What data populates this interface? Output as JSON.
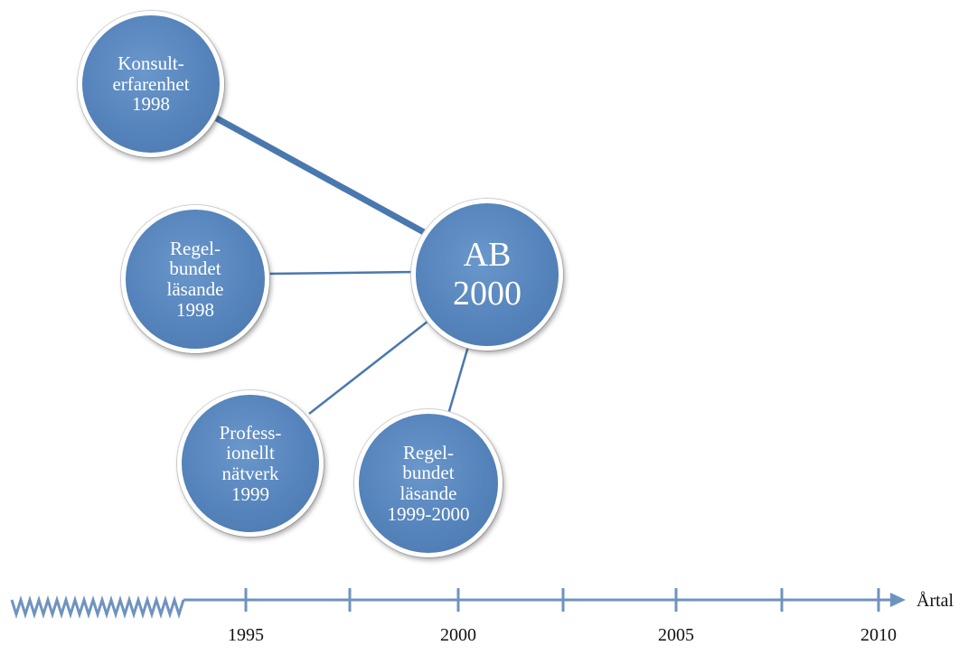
{
  "diagram": {
    "center": {
      "lines": "AB\n2000"
    },
    "nodes": [
      {
        "id": "konsult",
        "lines": "Konsult-\nerfarenhet\n1998"
      },
      {
        "id": "regel1998",
        "lines": "Regel-\nbundet\nläsande\n1998"
      },
      {
        "id": "natverk",
        "lines": "Profess-\nionellt\nnätverk\n1999"
      },
      {
        "id": "regel1999",
        "lines": "Regel-\nbundet\nläsande\n1999-2000"
      }
    ]
  },
  "timeline": {
    "axis_label": "Årtal",
    "tick_labels": [
      "1995",
      "2000",
      "2005",
      "2010"
    ]
  },
  "colors": {
    "node_fill": "#5583bb",
    "line": "#4a78ae",
    "axis": "#6f93bf"
  }
}
